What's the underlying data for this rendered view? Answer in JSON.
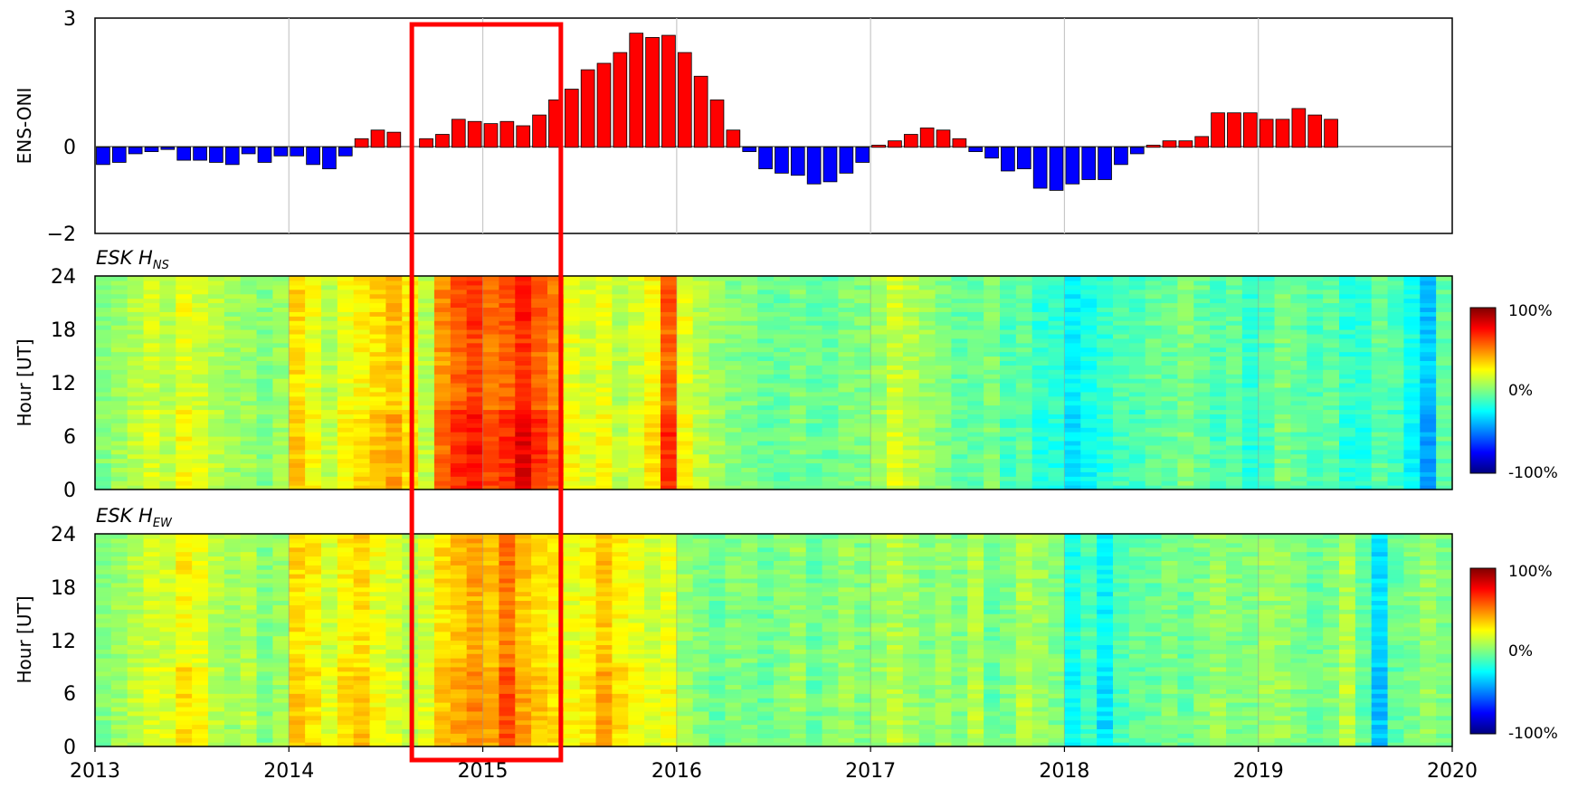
{
  "chart_data": [
    {
      "type": "bar",
      "ylabel": "ENS-ONI",
      "ylim": [
        -2,
        3
      ],
      "ytick_labels": [
        "3",
        "0",
        "−2"
      ],
      "xlim": [
        "2013-01",
        "2020-01"
      ],
      "x": [
        "2013-01",
        "2013-02",
        "2013-03",
        "2013-04",
        "2013-05",
        "2013-06",
        "2013-07",
        "2013-08",
        "2013-09",
        "2013-10",
        "2013-11",
        "2013-12",
        "2014-01",
        "2014-02",
        "2014-03",
        "2014-04",
        "2014-05",
        "2014-06",
        "2014-07",
        "2014-08",
        "2014-09",
        "2014-10",
        "2014-11",
        "2014-12",
        "2015-01",
        "2015-02",
        "2015-03",
        "2015-04",
        "2015-05",
        "2015-06",
        "2015-07",
        "2015-08",
        "2015-09",
        "2015-10",
        "2015-11",
        "2015-12",
        "2016-01",
        "2016-02",
        "2016-03",
        "2016-04",
        "2016-05",
        "2016-06",
        "2016-07",
        "2016-08",
        "2016-09",
        "2016-10",
        "2016-11",
        "2016-12",
        "2017-01",
        "2017-02",
        "2017-03",
        "2017-04",
        "2017-05",
        "2017-06",
        "2017-07",
        "2017-08",
        "2017-09",
        "2017-10",
        "2017-11",
        "2017-12",
        "2018-01",
        "2018-02",
        "2018-03",
        "2018-04",
        "2018-05",
        "2018-06",
        "2018-07",
        "2018-08",
        "2018-09",
        "2018-10",
        "2018-11",
        "2018-12",
        "2019-01",
        "2019-02",
        "2019-03",
        "2019-04",
        "2019-05",
        "2019-06"
      ],
      "values": [
        -0.4,
        -0.35,
        -0.15,
        -0.1,
        -0.05,
        -0.3,
        -0.3,
        -0.35,
        -0.4,
        -0.15,
        -0.35,
        -0.2,
        -0.2,
        -0.4,
        -0.5,
        -0.2,
        0.2,
        0.4,
        0.35,
        0.0,
        0.2,
        0.3,
        0.65,
        0.6,
        0.55,
        0.6,
        0.5,
        0.75,
        1.1,
        1.35,
        1.8,
        1.95,
        2.2,
        2.65,
        2.55,
        2.6,
        2.2,
        1.65,
        1.1,
        0.4,
        -0.1,
        -0.5,
        -0.6,
        -0.65,
        -0.85,
        -0.8,
        -0.6,
        -0.35,
        0.05,
        0.15,
        0.3,
        0.45,
        0.4,
        0.2,
        -0.1,
        -0.25,
        -0.55,
        -0.5,
        -0.95,
        -1.0,
        -0.85,
        -0.75,
        -0.75,
        -0.4,
        -0.15,
        0.05,
        0.15,
        0.15,
        0.25,
        0.8,
        0.8,
        0.8,
        0.65,
        0.65,
        0.9,
        0.75,
        0.65,
        0.0
      ],
      "colors": {
        "positive": "#ff0000",
        "negative": "#0000ff"
      }
    },
    {
      "type": "heatmap",
      "title": "ESK H",
      "title_sub": "NS",
      "ylabel": "Hour [UT]",
      "ylim": [
        0,
        24
      ],
      "ytick_labels": [
        "24",
        "18",
        "12",
        "6",
        "0"
      ],
      "colorbar": {
        "min_label": "-100%",
        "mid_label": "0%",
        "max_label": "100%",
        "colormap": "jet"
      },
      "monthly_anomaly_pct": [
        0,
        5,
        10,
        15,
        10,
        20,
        15,
        10,
        5,
        5,
        0,
        5,
        30,
        20,
        10,
        20,
        25,
        30,
        35,
        25,
        10,
        45,
        55,
        60,
        50,
        55,
        65,
        55,
        45,
        20,
        15,
        20,
        10,
        15,
        25,
        55,
        20,
        10,
        5,
        0,
        0,
        -5,
        -5,
        0,
        -5,
        -5,
        0,
        0,
        5,
        15,
        10,
        5,
        0,
        -5,
        -5,
        0,
        -10,
        -5,
        -15,
        -15,
        -25,
        -20,
        -15,
        -10,
        -10,
        -5,
        -5,
        0,
        -5,
        -10,
        -5,
        -15,
        -10,
        0,
        -5,
        -10,
        -5,
        -15,
        -15,
        -5,
        -10,
        -20,
        -35,
        -5
      ]
    },
    {
      "type": "heatmap",
      "title": "ESK H",
      "title_sub": "EW",
      "ylabel": "Hour [UT]",
      "ylim": [
        0,
        24
      ],
      "ytick_labels": [
        "24",
        "18",
        "12",
        "6",
        "0"
      ],
      "colorbar": {
        "min_label": "-100%",
        "mid_label": "0%",
        "max_label": "100%",
        "colormap": "jet"
      },
      "monthly_anomaly_pct": [
        0,
        5,
        10,
        15,
        15,
        25,
        20,
        10,
        5,
        10,
        0,
        5,
        30,
        25,
        15,
        25,
        30,
        20,
        15,
        10,
        15,
        30,
        35,
        40,
        35,
        50,
        35,
        30,
        25,
        20,
        25,
        35,
        25,
        20,
        15,
        20,
        5,
        0,
        -5,
        0,
        0,
        -5,
        0,
        5,
        -5,
        0,
        5,
        0,
        5,
        10,
        5,
        0,
        5,
        0,
        10,
        -5,
        0,
        10,
        5,
        0,
        -20,
        -10,
        -25,
        -10,
        -5,
        -5,
        0,
        -5,
        0,
        5,
        0,
        0,
        5,
        5,
        0,
        -5,
        0,
        10,
        -5,
        -30,
        -5,
        0,
        5,
        0
      ]
    }
  ],
  "x_tick_labels": [
    "2013",
    "2014",
    "2015",
    "2016",
    "2017",
    "2018",
    "2019",
    "2020"
  ],
  "highlight_box": {
    "x_start": "2014-09",
    "x_end": "2015-05",
    "color": "#ff0000"
  }
}
